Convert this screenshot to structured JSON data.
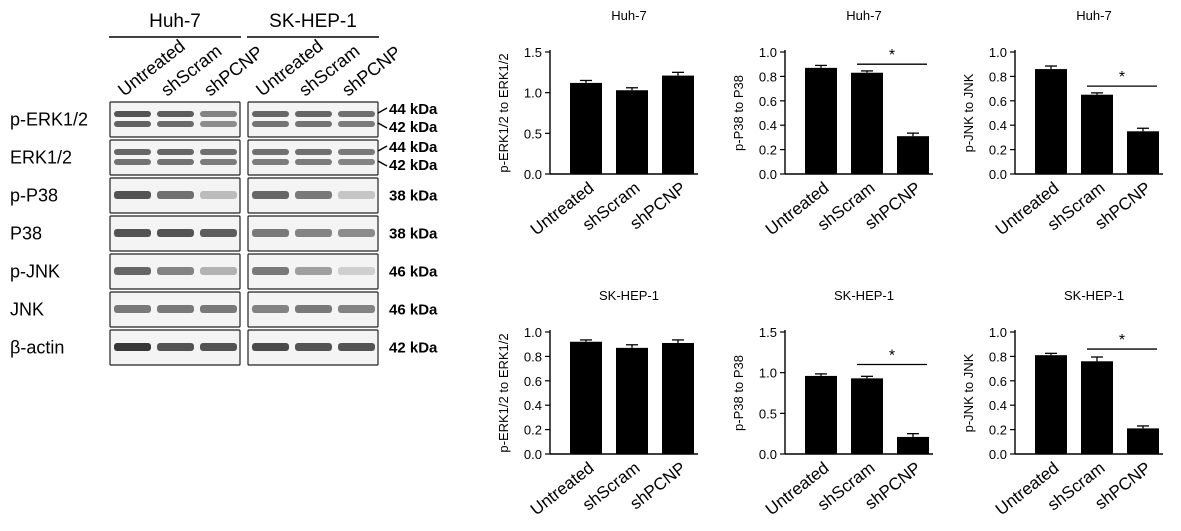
{
  "blot": {
    "cell_lines": [
      "Huh-7",
      "SK-HEP-1"
    ],
    "lanes": [
      "Untreated",
      "shScram",
      "shPCNP"
    ],
    "rows": [
      {
        "label": "p-ERK1/2",
        "kda": [
          "44 kDa",
          "42 kDa"
        ],
        "double": true,
        "intensity": [
          [
            0.8,
            0.75,
            0.55
          ],
          [
            0.7,
            0.7,
            0.65
          ]
        ]
      },
      {
        "label": "ERK1/2",
        "kda": [
          "44 kDa",
          "42 kDa"
        ],
        "double": true,
        "intensity": [
          [
            0.7,
            0.7,
            0.65
          ],
          [
            0.65,
            0.65,
            0.6
          ]
        ]
      },
      {
        "label": "p-P38",
        "kda": [
          "38 kDa"
        ],
        "double": false,
        "intensity": [
          [
            0.8,
            0.65,
            0.25
          ],
          [
            0.7,
            0.6,
            0.2
          ]
        ]
      },
      {
        "label": "P38",
        "kda": [
          "38 kDa"
        ],
        "double": false,
        "intensity": [
          [
            0.8,
            0.8,
            0.75
          ],
          [
            0.6,
            0.55,
            0.5
          ]
        ]
      },
      {
        "label": "p-JNK",
        "kda": [
          "46 kDa"
        ],
        "double": false,
        "intensity": [
          [
            0.7,
            0.55,
            0.3
          ],
          [
            0.6,
            0.4,
            0.15
          ]
        ]
      },
      {
        "label": "JNK",
        "kda": [
          "46 kDa"
        ],
        "double": false,
        "intensity": [
          [
            0.6,
            0.6,
            0.6
          ],
          [
            0.55,
            0.6,
            0.55
          ]
        ]
      },
      {
        "label": "β-actin",
        "kda": [
          "42 kDa"
        ],
        "double": false,
        "intensity": [
          [
            0.95,
            0.8,
            0.8
          ],
          [
            0.85,
            0.8,
            0.8
          ]
        ]
      }
    ]
  },
  "chart_data": [
    {
      "type": "bar",
      "title": "Huh-7",
      "ylabel": "p-ERK1/2 to ERK1/2",
      "categories": [
        "Untreated",
        "shScram",
        "shPCNP"
      ],
      "values": [
        1.12,
        1.03,
        1.21
      ],
      "errors": [
        0.03,
        0.03,
        0.04
      ],
      "ylim": [
        0,
        1.5
      ],
      "yticks": [
        "0.0",
        "0.5",
        "1.0",
        "1.5"
      ],
      "significance": null
    },
    {
      "type": "bar",
      "title": "Huh-7",
      "ylabel": "p-P38 to P38",
      "categories": [
        "Untreated",
        "shScram",
        "shPCNP"
      ],
      "values": [
        0.87,
        0.83,
        0.31
      ],
      "errors": [
        0.02,
        0.015,
        0.025
      ],
      "ylim": [
        0,
        1.0
      ],
      "yticks": [
        "0.0",
        "0.2",
        "0.4",
        "0.6",
        "0.8",
        "1.0"
      ],
      "significance": {
        "from": 1,
        "to": 2,
        "y": 0.9,
        "label": "*"
      }
    },
    {
      "type": "bar",
      "title": "Huh-7",
      "ylabel": "p-JNK to JNK",
      "categories": [
        "Untreated",
        "shScram",
        "shPCNP"
      ],
      "values": [
        0.86,
        0.65,
        0.35
      ],
      "errors": [
        0.025,
        0.015,
        0.025
      ],
      "ylim": [
        0,
        1.0
      ],
      "yticks": [
        "0.0",
        "0.2",
        "0.4",
        "0.6",
        "0.8",
        "1.0"
      ],
      "significance": {
        "from": 1,
        "to": 2,
        "y": 0.72,
        "label": "*"
      }
    },
    {
      "type": "bar",
      "title": "SK-HEP-1",
      "ylabel": "p-ERK1/2 to ERK1/2",
      "categories": [
        "Untreated",
        "shScram",
        "shPCNP"
      ],
      "values": [
        0.92,
        0.87,
        0.91
      ],
      "errors": [
        0.015,
        0.025,
        0.025
      ],
      "ylim": [
        0,
        1.0
      ],
      "yticks": [
        "0.0",
        "0.2",
        "0.4",
        "0.6",
        "0.8",
        "1.0"
      ],
      "significance": null
    },
    {
      "type": "bar",
      "title": "SK-HEP-1",
      "ylabel": "p-P38 to P38",
      "categories": [
        "Untreated",
        "shScram",
        "shPCNP"
      ],
      "values": [
        0.96,
        0.93,
        0.21
      ],
      "errors": [
        0.025,
        0.025,
        0.04
      ],
      "ylim": [
        0,
        1.5
      ],
      "yticks": [
        "0.0",
        "0.5",
        "1.0",
        "1.5"
      ],
      "significance": {
        "from": 1,
        "to": 2,
        "y": 1.1,
        "label": "*"
      }
    },
    {
      "type": "bar",
      "title": "SK-HEP-1",
      "ylabel": "p-JNK to JNK",
      "categories": [
        "Untreated",
        "shScram",
        "shPCNP"
      ],
      "values": [
        0.81,
        0.76,
        0.21
      ],
      "errors": [
        0.015,
        0.035,
        0.02
      ],
      "ylim": [
        0,
        1.0
      ],
      "yticks": [
        "0.0",
        "0.2",
        "0.4",
        "0.6",
        "0.8",
        "1.0"
      ],
      "significance": {
        "from": 1,
        "to": 2,
        "y": 0.86,
        "label": "*"
      }
    }
  ]
}
